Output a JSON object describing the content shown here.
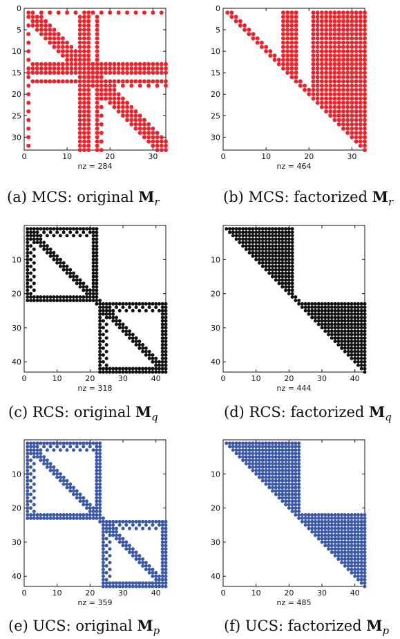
{
  "colors": {
    "mcs": "#e8242c",
    "rcs": "#111111",
    "ucs": "#3a57a8"
  },
  "chart_data": [
    {
      "type": "spy",
      "pattern": "mcs_original",
      "n": 33,
      "nz_label": "nz = 284",
      "caption_prefix": "(a) MCS: original ",
      "caption_matrix": "M",
      "caption_sub": "r",
      "xticks": [
        0,
        10,
        20,
        30
      ],
      "yticks": [
        0,
        5,
        10,
        15,
        20,
        25,
        30
      ],
      "color": "mcs"
    },
    {
      "type": "spy",
      "pattern": "mcs_factorized",
      "n": 33,
      "nz_label": "nz = 464",
      "caption_prefix": "(b) MCS: factorized ",
      "caption_matrix": "M",
      "caption_sub": "r",
      "xticks": [
        0,
        10,
        20,
        30
      ],
      "yticks": [
        0,
        5,
        10,
        15,
        20,
        25,
        30
      ],
      "color": "mcs"
    },
    {
      "type": "spy",
      "pattern": "rcs_original",
      "n": 43,
      "nz_label": "nz = 318",
      "caption_prefix": "(c) RCS: original ",
      "caption_matrix": "M",
      "caption_sub": "q",
      "xticks": [
        0,
        10,
        20,
        30,
        40
      ],
      "yticks": [
        10,
        20,
        30,
        40
      ],
      "color": "rcs"
    },
    {
      "type": "spy",
      "pattern": "rcs_factorized",
      "n": 43,
      "nz_label": "nz = 444",
      "caption_prefix": "(d) RCS: factorized ",
      "caption_matrix": "M",
      "caption_sub": "q",
      "xticks": [
        0,
        10,
        20,
        30,
        40
      ],
      "yticks": [
        10,
        20,
        30,
        40
      ],
      "color": "rcs"
    },
    {
      "type": "spy",
      "pattern": "ucs_original",
      "n": 43,
      "nz_label": "nz = 359",
      "caption_prefix": "(e) UCS: original ",
      "caption_matrix": "M",
      "caption_sub": "p",
      "xticks": [
        0,
        10,
        20,
        30,
        40
      ],
      "yticks": [
        10,
        20,
        30,
        40
      ],
      "color": "ucs"
    },
    {
      "type": "spy",
      "pattern": "ucs_factorized",
      "n": 43,
      "nz_label": "nz = 485",
      "caption_prefix": "(f) UCS: factorized ",
      "caption_matrix": "M",
      "caption_sub": "p",
      "xticks": [
        0,
        10,
        20,
        30,
        40
      ],
      "yticks": [
        10,
        20,
        30,
        40
      ],
      "color": "ucs"
    }
  ]
}
